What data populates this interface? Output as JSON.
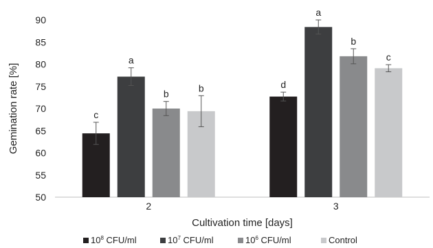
{
  "chart_data": {
    "type": "bar",
    "title": "",
    "xlabel": "Cultivation time [days]",
    "ylabel": "Gemination rate [%]",
    "ylim": [
      50,
      90
    ],
    "yticks": [
      50,
      55,
      60,
      65,
      70,
      75,
      80,
      85,
      90
    ],
    "grid": false,
    "legend_position": "bottom",
    "categories": [
      "2",
      "3"
    ],
    "series": [
      {
        "name": "10⁸ CFU/ml",
        "legend_base": "10",
        "legend_exp": "8",
        "legend_unit": " CFU/ml",
        "color": "#231f20",
        "values": [
          64.4,
          72.7
        ],
        "errors": [
          2.5,
          1.0
        ],
        "letters": [
          "c",
          "d"
        ]
      },
      {
        "name": "10⁷ CFU/ml",
        "legend_base": "10",
        "legend_exp": "7",
        "legend_unit": " CFU/ml",
        "color": "#3d3e40",
        "values": [
          77.2,
          88.4
        ],
        "errors": [
          2.0,
          1.6
        ],
        "letters": [
          "a",
          "a"
        ]
      },
      {
        "name": "10⁶ CFU/ml",
        "legend_base": "10",
        "legend_exp": "6",
        "legend_unit": " CFU/ml",
        "color": "#898a8c",
        "values": [
          70.0,
          81.8
        ],
        "errors": [
          1.6,
          1.7
        ],
        "letters": [
          "b",
          "b"
        ]
      },
      {
        "name": "Control",
        "legend_base": "Control",
        "legend_exp": "",
        "legend_unit": "",
        "color": "#c8c9cb",
        "values": [
          69.4,
          79.1
        ],
        "errors": [
          3.5,
          0.8
        ],
        "letters": [
          "b",
          "c"
        ]
      }
    ]
  }
}
